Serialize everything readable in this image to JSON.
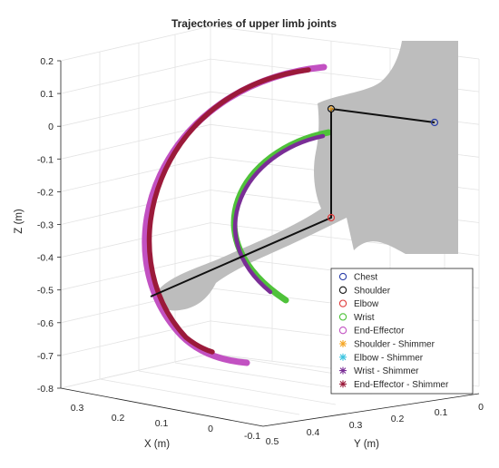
{
  "chart_data": {
    "type": "3d-line",
    "title": "Trajectories of upper limb joints",
    "xlabel": "X (m)",
    "ylabel": "Y (m)",
    "zlabel": "Z (m)",
    "z_ticks": [
      "0.2",
      "0.1",
      "0",
      "-0.1",
      "-0.2",
      "-0.3",
      "-0.4",
      "-0.5",
      "-0.6",
      "-0.7",
      "-0.8"
    ],
    "x_ticks": [
      "0.3",
      "0.2",
      "0.1",
      "0",
      "-0.1"
    ],
    "y_ticks": [
      "0.5",
      "0.4",
      "0.3",
      "0.2",
      "0.1",
      "0"
    ],
    "zlim": [
      -0.8,
      0.2
    ],
    "grid": true,
    "legend_position": "bottom-right",
    "legend": [
      {
        "label": "Chest",
        "marker": "circle",
        "color": "#2b3fa8"
      },
      {
        "label": "Shoulder",
        "marker": "circle",
        "color": "#111111"
      },
      {
        "label": "Elbow",
        "marker": "circle",
        "color": "#e03a3a"
      },
      {
        "label": "Wrist",
        "marker": "circle",
        "color": "#4fc23a"
      },
      {
        "label": "End-Effector",
        "marker": "circle",
        "color": "#c251c2"
      },
      {
        "label": "Shoulder - Shimmer",
        "marker": "asterisk",
        "color": "#f5a623"
      },
      {
        "label": "Elbow - Shimmer",
        "marker": "asterisk",
        "color": "#3cc4e0"
      },
      {
        "label": "Wrist - Shimmer",
        "marker": "asterisk",
        "color": "#7a2e96"
      },
      {
        "label": "End-Effector - Shimmer",
        "marker": "asterisk",
        "color": "#9b1a3a"
      }
    ],
    "joints": {
      "chest_z": 0.01,
      "shoulder_z": 0.06,
      "elbow_z": -0.28,
      "end_effector_start_z": -0.52
    },
    "trajectories": {
      "wrist_arc_z_range": [
        -0.53,
        -0.01
      ],
      "end_effector_arc_z_range": [
        -0.73,
        0.18
      ]
    },
    "colors": {
      "body_silhouette": "#bdbdbd",
      "end_effector": "#c251c2",
      "end_effector_shimmer": "#9b1a3a",
      "wrist": "#4fc23a",
      "wrist_shimmer": "#7a2e96"
    }
  }
}
